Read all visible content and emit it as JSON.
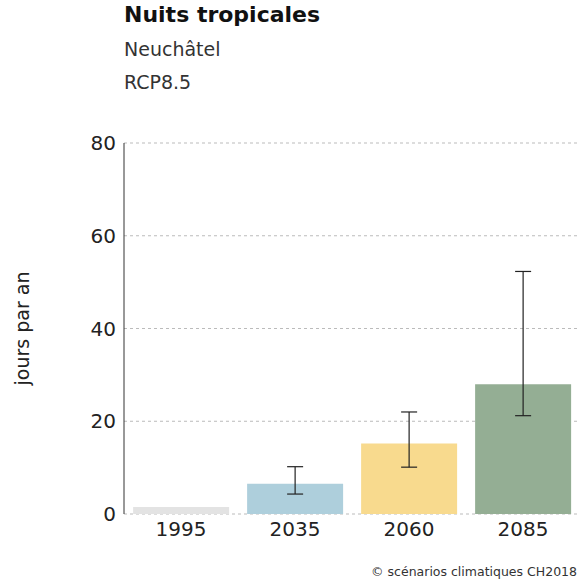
{
  "chart_data": {
    "type": "bar",
    "title": "Nuits tropicales",
    "subtitle": [
      "Neuchâtel",
      "RCP8.5"
    ],
    "y_label": "jours par an",
    "annotations": [
      "© scénarios climatiques CH2018"
    ],
    "categories": [
      "1995",
      "2035",
      "2060",
      "2085"
    ],
    "values": [
      1.5,
      6.5,
      15.2,
      28
    ],
    "error_low": [
      null,
      4.3,
      10.1,
      21.2
    ],
    "error_high": [
      null,
      10.2,
      22,
      52.3
    ],
    "colors": [
      "#e3e3e3",
      "#aecfdc",
      "#f8da8e",
      "#94ae94"
    ],
    "ylim": [
      0,
      80
    ],
    "yticks": [
      0,
      20,
      40,
      60,
      80
    ],
    "grid": true
  }
}
